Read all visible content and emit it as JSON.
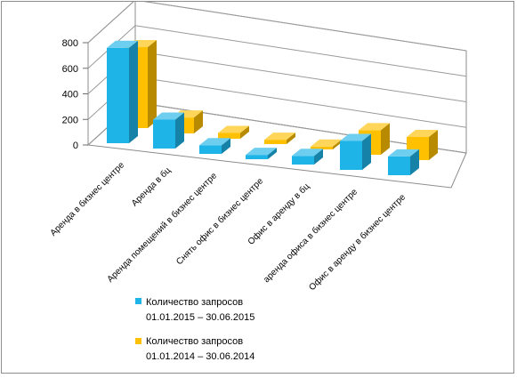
{
  "chart_data": {
    "type": "bar",
    "variant": "3d-clustered-column",
    "categories": [
      "Аренда в бизнес центре",
      "Аренда в бц",
      "Аренда помещений в  бизнес центре",
      "Снять офис в бизнес центре",
      "Офис в аренду в бц",
      "аренда офиса в бизнес центре",
      "Офис в аренду в бизнес центре"
    ],
    "series": [
      {
        "name": "Количество запросов 01.01.2015 – 30.06.2015",
        "name_lines": [
          "Количество запросов",
          "01.01.2015 – 30.06.2015"
        ],
        "color": "#1fb4e8",
        "values": [
          660,
          200,
          60,
          30,
          60,
          200,
          130
        ]
      },
      {
        "name": "Количество запросов 01.01.2014 – 30.06.2014",
        "name_lines": [
          "Количество запросов",
          "01.01.2014 – 30.06.2014"
        ],
        "color": "#ffc000",
        "values": [
          560,
          110,
          40,
          30,
          20,
          170,
          160
        ]
      }
    ],
    "yticks": [
      "0",
      "200",
      "400",
      "600",
      "800"
    ],
    "ylim": [
      0,
      800
    ],
    "grid": true,
    "legend_position": "bottom"
  }
}
